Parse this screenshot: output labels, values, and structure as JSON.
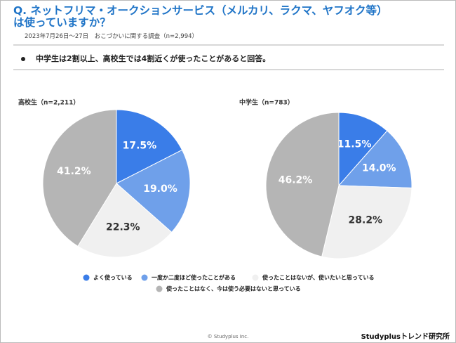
{
  "header": {
    "title": "Q. ネットフリマ・オークションサービス（メルカリ、ラクマ、ヤフオク等）は使っていますか？",
    "subtitle": "2023年7月26日～27日　おこづかいに関する調査（n=2,994）"
  },
  "bullet": "中学生は2割以上、高校生では4割近くが使ったことがあると回答。",
  "legend": {
    "categories": [
      "よく使っている",
      "一度か二度ほど使ったことがある",
      "使ったことはないが、使いたいと思っている",
      "使ったことはなく、今は使う必要はないと思っている"
    ],
    "colors": [
      "#3a7de8",
      "#6fa0ea",
      "#f0f0f0",
      "#b5b5b5"
    ]
  },
  "chart_data": [
    {
      "type": "pie",
      "title": "高校生（n=2,211）",
      "values": [
        17.5,
        19.0,
        22.3,
        41.2
      ],
      "value_labels": [
        "17.5%",
        "19.0%",
        "22.3%",
        "41.2%"
      ]
    },
    {
      "type": "pie",
      "title": "中学生（n=783）",
      "values": [
        11.5,
        14.0,
        28.2,
        46.2
      ],
      "value_labels": [
        "11.5%",
        "14.0%",
        "28.2%",
        "46.2%"
      ]
    }
  ],
  "footer": {
    "copyright": "© Studyplus Inc.",
    "brand": "Studyplusトレンド研究所"
  }
}
